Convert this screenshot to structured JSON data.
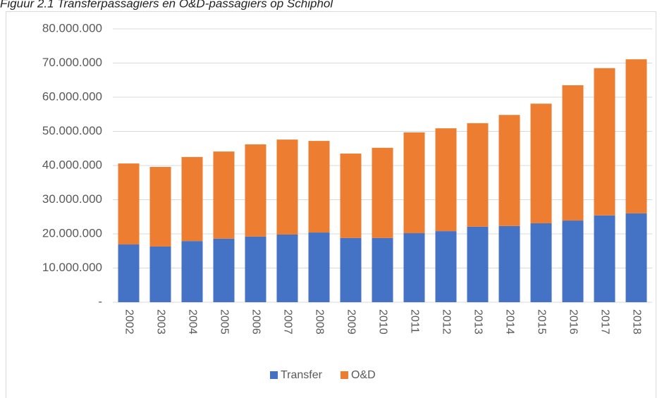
{
  "chart_data": {
    "type": "bar",
    "stacked": true,
    "title": "Figuur 2.1 Transferpassagiers en O&D-passagiers op Schiphol",
    "categories": [
      "2002",
      "2003",
      "2004",
      "2005",
      "2006",
      "2007",
      "2008",
      "2009",
      "2010",
      "2011",
      "2012",
      "2013",
      "2014",
      "2015",
      "2016",
      "2017",
      "2018"
    ],
    "series": [
      {
        "name": "Transfer",
        "color": "#4472c4",
        "values": [
          16900000,
          16300000,
          17900000,
          18600000,
          19200000,
          19800000,
          20400000,
          18800000,
          18800000,
          20200000,
          20800000,
          22100000,
          22300000,
          23100000,
          23900000,
          25400000,
          26000000
        ]
      },
      {
        "name": "O&D",
        "color": "#ed7d31",
        "values": [
          23700000,
          23300000,
          24600000,
          25500000,
          27000000,
          27800000,
          26800000,
          24700000,
          26400000,
          29500000,
          30100000,
          30300000,
          32500000,
          35000000,
          39600000,
          43100000,
          45100000
        ]
      }
    ],
    "ylim": [
      0,
      80000000
    ],
    "yticks": [
      {
        "value": 0,
        "label": "-"
      },
      {
        "value": 10000000,
        "label": "10.000.000"
      },
      {
        "value": 20000000,
        "label": "20.000.000"
      },
      {
        "value": 30000000,
        "label": "30.000.000"
      },
      {
        "value": 40000000,
        "label": "40.000.000"
      },
      {
        "value": 50000000,
        "label": "50.000.000"
      },
      {
        "value": 60000000,
        "label": "60.000.000"
      },
      {
        "value": 70000000,
        "label": "70.000.000"
      },
      {
        "value": 80000000,
        "label": "80.000.000"
      }
    ],
    "grid": true,
    "legend": "bottom"
  }
}
